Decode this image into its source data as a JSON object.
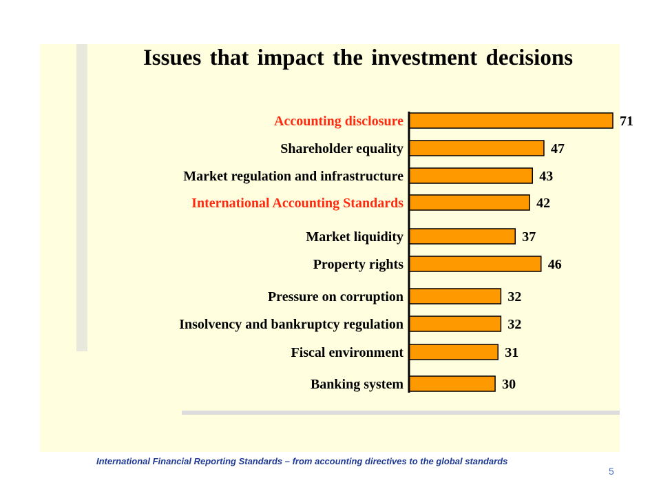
{
  "slide": {
    "footer": "International Financial Reporting Standards – from accounting directives to the global standards",
    "page_number": "5"
  },
  "chart_data": {
    "type": "bar",
    "orientation": "horizontal",
    "title": "Issues that impact the investment  decisions",
    "xlabel": "",
    "ylabel": "",
    "xlim": [
      0,
      71
    ],
    "grid": false,
    "legend": "none",
    "bar_color": "#ff9900",
    "label_color_default": "#000000",
    "label_color_highlight": "#ff2a10",
    "categories": [
      "Accounting disclosure",
      "Shareholder equality",
      "Market regulation and infrastructure",
      "International Accounting Standards",
      "Market liquidity",
      "Property rights",
      "Pressure on corruption",
      "Insolvency and bankruptcy regulation",
      "Fiscal environment",
      "Banking system"
    ],
    "values": [
      71,
      47,
      43,
      42,
      37,
      46,
      32,
      32,
      31,
      30
    ],
    "highlighted": [
      true,
      false,
      false,
      true,
      false,
      false,
      false,
      false,
      false,
      false
    ]
  }
}
